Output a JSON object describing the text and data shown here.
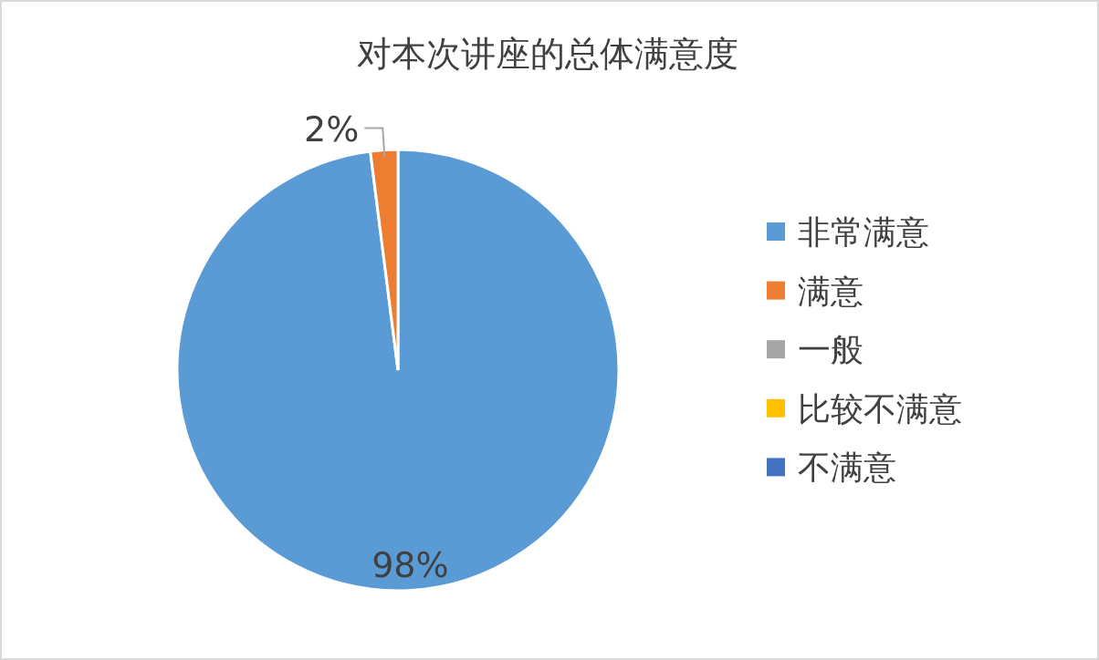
{
  "chart_data": {
    "type": "pie",
    "title": "对本次讲座的总体满意度",
    "categories": [
      "非常满意",
      "满意",
      "一般",
      "比较不满意",
      "不满意"
    ],
    "values": [
      98,
      2,
      0,
      0,
      0
    ],
    "colors": [
      "#5b9bd5",
      "#ed7d31",
      "#a5a5a5",
      "#ffc000",
      "#4472c4"
    ],
    "value_labels": [
      "98%",
      "2%",
      null,
      null,
      null
    ],
    "legend": "right"
  }
}
